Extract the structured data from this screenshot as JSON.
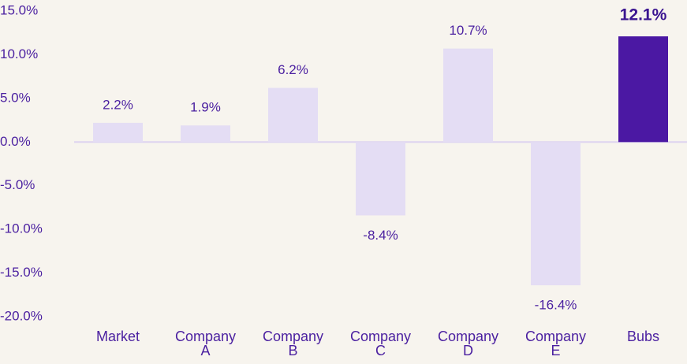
{
  "chart_data": {
    "type": "bar",
    "categories": [
      "Market",
      "Company A",
      "Company B",
      "Company C",
      "Company D",
      "Company E",
      "Bubs"
    ],
    "values": [
      2.2,
      1.9,
      6.2,
      -8.4,
      10.7,
      -16.4,
      12.1
    ],
    "value_labels": [
      "2.2%",
      "1.9%",
      "6.2%",
      "-8.4%",
      "10.7%",
      "-16.4%",
      "12.1%"
    ],
    "colors": [
      "#e4ddf4",
      "#e4ddf4",
      "#e4ddf4",
      "#e4ddf4",
      "#e4ddf4",
      "#e4ddf4",
      "#4b18a3"
    ],
    "highlight": "Bubs",
    "ylim": [
      -20,
      15
    ],
    "yticks": [
      {
        "value": 15,
        "label": "15.0%"
      },
      {
        "value": 10,
        "label": "10.0%"
      },
      {
        "value": 5,
        "label": "5.0%"
      },
      {
        "value": 0,
        "label": "0.0%"
      },
      {
        "value": -5,
        "label": "-5.0%"
      },
      {
        "value": -10,
        "label": "-10.0%"
      },
      {
        "value": -15,
        "label": "-15.0%"
      },
      {
        "value": -20,
        "label": "-20.0%"
      }
    ],
    "grid": false
  }
}
